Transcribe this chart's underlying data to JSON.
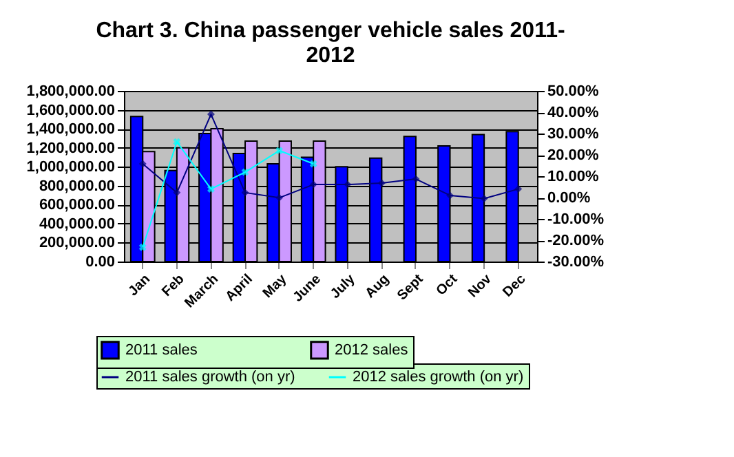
{
  "chart_data": {
    "type": "bar",
    "title": "Chart 3. China passenger vehicle sales 2011-2012",
    "categories": [
      "Jan",
      "Feb",
      "March",
      "April",
      "May",
      "June",
      "July",
      "Aug",
      "Sept",
      "Oct",
      "Nov",
      "Dec"
    ],
    "series": [
      {
        "name": "2011 sales",
        "color": "#0000ff",
        "values": [
          1530000,
          960000,
          1350000,
          1140000,
          1030000,
          1100000,
          1000000,
          1090000,
          1320000,
          1220000,
          1340000,
          1370000
        ]
      },
      {
        "name": "2012 sales",
        "color": "#cc99ff",
        "values": [
          1160000,
          1200000,
          1400000,
          1270000,
          1270000,
          1270000,
          null,
          null,
          null,
          null,
          null,
          null
        ]
      },
      {
        "name": "2011 sales growth (on yr)",
        "type": "line",
        "axis": "y2",
        "marker": "diamond",
        "color": "#000080",
        "values": [
          15.8,
          2.3,
          39.0,
          2.3,
          -0.1,
          6.1,
          6.1,
          6.8,
          8.7,
          1.0,
          -0.5,
          4.0
        ]
      },
      {
        "name": "2012 sales growth (on yr)",
        "type": "line",
        "axis": "y2",
        "marker": "cross",
        "color": "#00ffff",
        "values": [
          -23.3,
          26.1,
          4.0,
          11.9,
          22.0,
          15.8,
          null,
          null,
          null,
          null,
          null,
          null
        ]
      }
    ],
    "ylim": [
      0,
      1800000
    ],
    "yticks": [
      {
        "value": 0,
        "label": "0.00"
      },
      {
        "value": 200000,
        "label": "200,000.00"
      },
      {
        "value": 400000,
        "label": "400,000.00"
      },
      {
        "value": 600000,
        "label": "600,000.00"
      },
      {
        "value": 800000,
        "label": "800,000.00"
      },
      {
        "value": 1000000,
        "label": "1,000,000.00"
      },
      {
        "value": 1200000,
        "label": "1,200,000.00"
      },
      {
        "value": 1400000,
        "label": "1,400,000.00"
      },
      {
        "value": 1600000,
        "label": "1,600,000.00"
      },
      {
        "value": 1800000,
        "label": "1,800,000.00"
      }
    ],
    "y2lim": [
      -30,
      50
    ],
    "y2ticks": [
      {
        "value": -30,
        "label": "-30.00%"
      },
      {
        "value": -20,
        "label": "-20.00%"
      },
      {
        "value": -10,
        "label": "-10.00%"
      },
      {
        "value": 0,
        "label": "0.00%"
      },
      {
        "value": 10,
        "label": "10.00%"
      },
      {
        "value": 20,
        "label": "20.00%"
      },
      {
        "value": 30,
        "label": "30.00%"
      },
      {
        "value": 40,
        "label": "40.00%"
      },
      {
        "value": 50,
        "label": "50.00%"
      }
    ],
    "grid": "y",
    "legend": "bottom"
  }
}
